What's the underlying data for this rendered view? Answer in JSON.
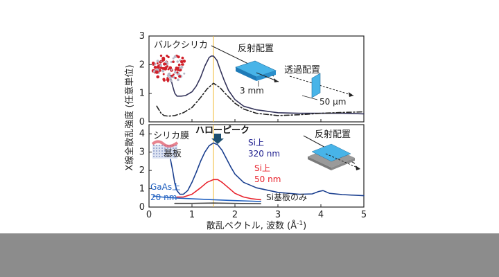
{
  "chart_data": {
    "type": "line",
    "ylabel": "X線全散乱強度 (任意単位)",
    "xlabel_main": "散乱ベクトル, 波数 (Å",
    "xlabel_sup": "-1",
    "xlabel_close": ")",
    "xlim": [
      0,
      5
    ],
    "x_ticks": [
      "0",
      "1",
      "2",
      "3",
      "4",
      "5"
    ],
    "peak_x": 1.5,
    "panels": [
      {
        "ylim": [
          0,
          3
        ],
        "y_ticks": [
          "0",
          "1",
          "2",
          "3"
        ],
        "labels": {
          "bulk": "バルクシリカ",
          "reflection": "反射配置",
          "transmission": "透過配置",
          "thickness_reflection": "3 mm",
          "thickness_transmission": "50 μm"
        },
        "series": [
          {
            "style": "solid",
            "color": "#33335a",
            "points": [
              [
                0.48,
                1.7
              ],
              [
                0.5,
                1.55
              ],
              [
                0.55,
                1.25
              ],
              [
                0.6,
                1.0
              ],
              [
                0.65,
                0.9
              ],
              [
                0.75,
                0.9
              ],
              [
                0.85,
                0.92
              ],
              [
                1.0,
                1.05
              ],
              [
                1.1,
                1.25
              ],
              [
                1.2,
                1.55
              ],
              [
                1.3,
                1.95
              ],
              [
                1.4,
                2.25
              ],
              [
                1.45,
                2.3
              ],
              [
                1.5,
                2.3
              ],
              [
                1.58,
                2.15
              ],
              [
                1.65,
                1.85
              ],
              [
                1.75,
                1.45
              ],
              [
                1.85,
                1.1
              ],
              [
                2.0,
                0.78
              ],
              [
                2.2,
                0.55
              ],
              [
                2.5,
                0.42
              ],
              [
                3.0,
                0.32
              ],
              [
                3.5,
                0.3
              ],
              [
                4.0,
                0.3
              ],
              [
                4.5,
                0.3
              ],
              [
                5.0,
                0.28
              ]
            ]
          },
          {
            "style": "dashdot",
            "color": "#222222",
            "points": [
              [
                0.18,
                0.55
              ],
              [
                0.22,
                0.45
              ],
              [
                0.28,
                0.3
              ],
              [
                0.35,
                0.22
              ],
              [
                0.45,
                0.2
              ],
              [
                0.6,
                0.22
              ],
              [
                0.8,
                0.32
              ],
              [
                1.0,
                0.5
              ],
              [
                1.2,
                0.85
              ],
              [
                1.35,
                1.15
              ],
              [
                1.5,
                1.35
              ],
              [
                1.65,
                1.2
              ],
              [
                1.8,
                0.95
              ],
              [
                2.0,
                0.65
              ],
              [
                2.2,
                0.45
              ],
              [
                2.5,
                0.3
              ],
              [
                3.0,
                0.22
              ],
              [
                3.5,
                0.25
              ],
              [
                4.0,
                0.3
              ],
              [
                4.5,
                0.33
              ],
              [
                5.0,
                0.35
              ]
            ]
          }
        ]
      },
      {
        "ylim": [
          0,
          4.5
        ],
        "y_ticks": [
          "0",
          "1",
          "2",
          "3",
          "4"
        ],
        "labels": {
          "silica_film": "シリカ膜",
          "substrate": "基板",
          "halo_peak": "ハローピーク",
          "reflection": "反射配置",
          "si_320_line1": "Si上",
          "si_320_line2": "320 nm",
          "si_50_line1": "Si上",
          "si_50_line2": "50 nm",
          "gaas_line1": "GaAs上",
          "gaas_line2": "20 nm",
          "si_only": "Si基板のみ"
        },
        "series": [
          {
            "name": "Si上 320 nm",
            "color": "#1a3f8f",
            "points": [
              [
                0.5,
                2.6
              ],
              [
                0.55,
                2.0
              ],
              [
                0.6,
                1.3
              ],
              [
                0.65,
                0.9
              ],
              [
                0.72,
                0.7
              ],
              [
                0.8,
                0.7
              ],
              [
                0.9,
                0.9
              ],
              [
                1.0,
                1.35
              ],
              [
                1.1,
                1.9
              ],
              [
                1.2,
                2.5
              ],
              [
                1.3,
                3.0
              ],
              [
                1.4,
                3.35
              ],
              [
                1.5,
                3.5
              ],
              [
                1.6,
                3.4
              ],
              [
                1.7,
                3.1
              ],
              [
                1.8,
                2.65
              ],
              [
                1.9,
                2.2
              ],
              [
                2.0,
                1.8
              ],
              [
                2.2,
                1.35
              ],
              [
                2.5,
                1.05
              ],
              [
                3.0,
                0.8
              ],
              [
                3.5,
                0.7
              ],
              [
                3.8,
                0.72
              ],
              [
                3.95,
                0.85
              ],
              [
                4.05,
                0.9
              ],
              [
                4.2,
                0.75
              ],
              [
                4.5,
                0.68
              ],
              [
                5.0,
                0.62
              ]
            ]
          },
          {
            "name": "Si上 50 nm",
            "color": "#e8202a",
            "points": [
              [
                0.65,
                0.55
              ],
              [
                0.8,
                0.55
              ],
              [
                1.0,
                0.7
              ],
              [
                1.2,
                1.05
              ],
              [
                1.35,
                1.35
              ],
              [
                1.5,
                1.5
              ],
              [
                1.6,
                1.5
              ],
              [
                1.7,
                1.35
              ],
              [
                1.85,
                1.05
              ],
              [
                2.0,
                0.75
              ],
              [
                2.2,
                0.55
              ],
              [
                2.4,
                0.45
              ],
              [
                2.6,
                0.4
              ]
            ]
          },
          {
            "name": "GaAs上 20 nm",
            "color": "#2060c0",
            "points": [
              [
                0.1,
                0.6
              ],
              [
                0.3,
                0.55
              ],
              [
                0.6,
                0.5
              ],
              [
                1.0,
                0.45
              ],
              [
                1.5,
                0.4
              ],
              [
                2.0,
                0.35
              ],
              [
                2.4,
                0.32
              ],
              [
                2.6,
                0.3
              ]
            ]
          },
          {
            "name": "Si基板のみ",
            "color": "#404040",
            "points": [
              [
                0.6,
                0.2
              ],
              [
                1.0,
                0.2
              ],
              [
                1.5,
                0.22
              ],
              [
                2.0,
                0.2
              ],
              [
                2.6,
                0.18
              ]
            ]
          }
        ]
      }
    ]
  }
}
